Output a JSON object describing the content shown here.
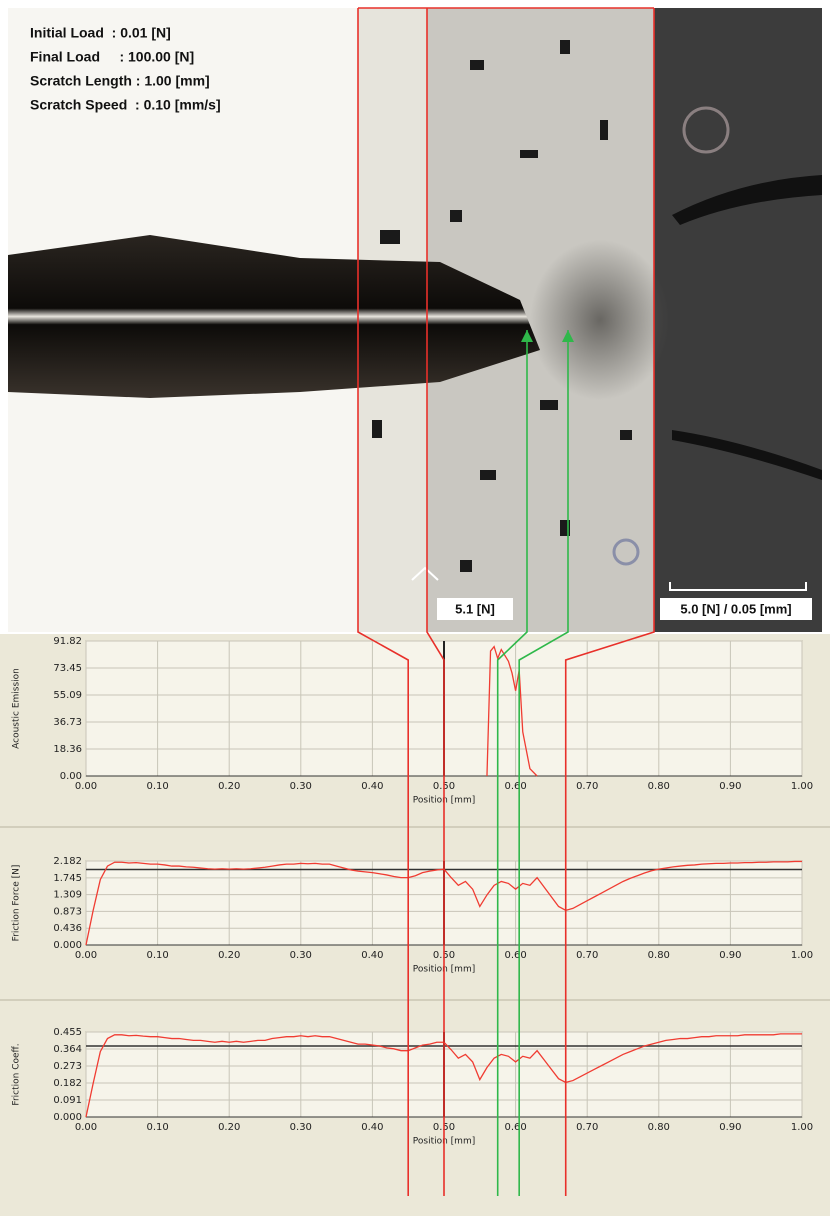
{
  "micrograph": {
    "labels": [
      "Initial Load  : 0.01 [N]",
      "Final Load     : 100.00 [N]",
      "Scratch Length : 1.00 [mm]",
      "Scratch Speed  : 0.10 [mm/s]"
    ],
    "critical_load": "5.1 [N]",
    "scale_bar": "5.0 [N] / 0.05 [mm]"
  },
  "event_markers": [
    {
      "position": 0.45,
      "color": "#e8302a"
    },
    {
      "position": 0.5,
      "color": "#e8302a"
    },
    {
      "position": 0.575,
      "color": "#2fb84a"
    },
    {
      "position": 0.605,
      "color": "#2fb84a"
    },
    {
      "position": 0.67,
      "color": "#e8302a"
    }
  ],
  "chart_data": [
    {
      "type": "line",
      "y_label": "Acoustic Emission",
      "x_label": "Position [mm]",
      "x": [
        0.56,
        0.565,
        0.57,
        0.575,
        0.58,
        0.585,
        0.59,
        0.595,
        0.6,
        0.605,
        0.61,
        0.62,
        0.63
      ],
      "series": [
        {
          "color": "#f03c32",
          "values": [
            0,
            85,
            88,
            80,
            86,
            82,
            78,
            70,
            58,
            72,
            30,
            5,
            0
          ]
        }
      ],
      "vline": {
        "value": 0.5,
        "color": "#222222"
      },
      "xlim": [
        0,
        1
      ],
      "xticks": [
        {
          "value": 0,
          "label": "0.00"
        },
        {
          "value": 0.1,
          "label": "0.10"
        },
        {
          "value": 0.2,
          "label": "0.20"
        },
        {
          "value": 0.3,
          "label": "0.30"
        },
        {
          "value": 0.4,
          "label": "0.40"
        },
        {
          "value": 0.5,
          "label": "0.50"
        },
        {
          "value": 0.6,
          "label": "0.60"
        },
        {
          "value": 0.7,
          "label": "0.70"
        },
        {
          "value": 0.8,
          "label": "0.80"
        },
        {
          "value": 0.9,
          "label": "0.90"
        },
        {
          "value": 1,
          "label": "1.00"
        }
      ],
      "ylim": [
        0,
        91.82
      ],
      "yticks": [
        {
          "value": 0,
          "label": "0.00"
        },
        18.36,
        36.73,
        55.09,
        73.45,
        91.82
      ],
      "grid": true
    },
    {
      "type": "line",
      "y_label": "Friction Force [N]",
      "x_label": "Position [mm]",
      "x": [
        0,
        0.01,
        0.02,
        0.03,
        0.04,
        0.05,
        0.06,
        0.07,
        0.08,
        0.09,
        0.1,
        0.11,
        0.12,
        0.13,
        0.14,
        0.15,
        0.16,
        0.17,
        0.18,
        0.19,
        0.2,
        0.21,
        0.22,
        0.23,
        0.24,
        0.25,
        0.26,
        0.27,
        0.28,
        0.29,
        0.3,
        0.31,
        0.32,
        0.33,
        0.34,
        0.35,
        0.36,
        0.37,
        0.38,
        0.39,
        0.4,
        0.41,
        0.42,
        0.43,
        0.44,
        0.45,
        0.46,
        0.47,
        0.48,
        0.49,
        0.5,
        0.51,
        0.52,
        0.53,
        0.54,
        0.55,
        0.56,
        0.57,
        0.58,
        0.59,
        0.6,
        0.61,
        0.62,
        0.63,
        0.64,
        0.65,
        0.66,
        0.67,
        0.68,
        0.69,
        0.7,
        0.71,
        0.72,
        0.73,
        0.74,
        0.75,
        0.76,
        0.77,
        0.78,
        0.79,
        0.8,
        0.81,
        0.82,
        0.83,
        0.84,
        0.85,
        0.86,
        0.87,
        0.88,
        0.89,
        0.9,
        0.91,
        0.92,
        0.93,
        0.94,
        0.95,
        0.96,
        0.97,
        0.98,
        0.99,
        1
      ],
      "series": [
        {
          "color": "#f03c32",
          "values": [
            0,
            0.9,
            1.7,
            2.05,
            2.15,
            2.15,
            2.13,
            2.14,
            2.12,
            2.1,
            2.1,
            2.08,
            2.05,
            2.05,
            2.03,
            2.02,
            2.0,
            1.98,
            1.97,
            1.98,
            1.97,
            1.98,
            1.97,
            1.98,
            2.0,
            2.02,
            2.05,
            2.08,
            2.1,
            2.1,
            2.12,
            2.11,
            2.12,
            2.1,
            2.1,
            2.05,
            2.0,
            1.95,
            1.92,
            1.9,
            1.88,
            1.85,
            1.82,
            1.78,
            1.75,
            1.75,
            1.8,
            1.88,
            1.92,
            1.95,
            1.97,
            1.75,
            1.55,
            1.65,
            1.45,
            1.0,
            1.3,
            1.55,
            1.65,
            1.6,
            1.45,
            1.6,
            1.55,
            1.75,
            1.5,
            1.25,
            1.0,
            0.9,
            0.95,
            1.05,
            1.15,
            1.25,
            1.35,
            1.45,
            1.55,
            1.65,
            1.73,
            1.8,
            1.87,
            1.93,
            1.97,
            2.0,
            2.03,
            2.05,
            2.07,
            2.08,
            2.1,
            2.11,
            2.12,
            2.12,
            2.13,
            2.13,
            2.14,
            2.14,
            2.15,
            2.15,
            2.16,
            2.16,
            2.16,
            2.17,
            2.17
          ]
        }
      ],
      "reference_line": {
        "value": 1.96,
        "color": "#333333"
      },
      "vline": {
        "value": 0.5,
        "color": "#222222"
      },
      "xlim": [
        0,
        1
      ],
      "xticks": [
        {
          "value": 0,
          "label": "0.00"
        },
        {
          "value": 0.1,
          "label": "0.10"
        },
        {
          "value": 0.2,
          "label": "0.20"
        },
        {
          "value": 0.3,
          "label": "0.30"
        },
        {
          "value": 0.4,
          "label": "0.40"
        },
        {
          "value": 0.5,
          "label": "0.50"
        },
        {
          "value": 0.6,
          "label": "0.60"
        },
        {
          "value": 0.7,
          "label": "0.70"
        },
        {
          "value": 0.8,
          "label": "0.80"
        },
        {
          "value": 0.9,
          "label": "0.90"
        },
        {
          "value": 1,
          "label": "1.00"
        }
      ],
      "ylim": [
        0,
        2.182
      ],
      "yticks": [
        {
          "value": 0,
          "label": "0.000"
        },
        0.436,
        0.873,
        1.309,
        1.745,
        2.182
      ],
      "grid": true
    },
    {
      "type": "line",
      "y_label": "Friction Coeff.",
      "x_label": "Position [mm]",
      "x": [
        0,
        0.01,
        0.02,
        0.03,
        0.04,
        0.05,
        0.06,
        0.07,
        0.08,
        0.09,
        0.1,
        0.11,
        0.12,
        0.13,
        0.14,
        0.15,
        0.16,
        0.17,
        0.18,
        0.19,
        0.2,
        0.21,
        0.22,
        0.23,
        0.24,
        0.25,
        0.26,
        0.27,
        0.28,
        0.29,
        0.3,
        0.31,
        0.32,
        0.33,
        0.34,
        0.35,
        0.36,
        0.37,
        0.38,
        0.39,
        0.4,
        0.41,
        0.42,
        0.43,
        0.44,
        0.45,
        0.46,
        0.47,
        0.48,
        0.49,
        0.5,
        0.51,
        0.52,
        0.53,
        0.54,
        0.55,
        0.56,
        0.57,
        0.58,
        0.59,
        0.6,
        0.61,
        0.62,
        0.63,
        0.64,
        0.65,
        0.66,
        0.67,
        0.68,
        0.69,
        0.7,
        0.71,
        0.72,
        0.73,
        0.74,
        0.75,
        0.76,
        0.77,
        0.78,
        0.79,
        0.8,
        0.81,
        0.82,
        0.83,
        0.84,
        0.85,
        0.86,
        0.87,
        0.88,
        0.89,
        0.9,
        0.91,
        0.92,
        0.93,
        0.94,
        0.95,
        0.96,
        0.97,
        0.98,
        0.99,
        1
      ],
      "series": [
        {
          "color": "#f03c32",
          "values": [
            0,
            0.18,
            0.35,
            0.42,
            0.44,
            0.44,
            0.435,
            0.437,
            0.433,
            0.43,
            0.43,
            0.425,
            0.42,
            0.42,
            0.415,
            0.41,
            0.41,
            0.405,
            0.4,
            0.405,
            0.4,
            0.405,
            0.4,
            0.405,
            0.41,
            0.41,
            0.42,
            0.425,
            0.43,
            0.43,
            0.435,
            0.43,
            0.435,
            0.43,
            0.43,
            0.42,
            0.41,
            0.4,
            0.39,
            0.39,
            0.385,
            0.38,
            0.37,
            0.365,
            0.355,
            0.355,
            0.37,
            0.385,
            0.39,
            0.4,
            0.4,
            0.36,
            0.315,
            0.335,
            0.295,
            0.2,
            0.265,
            0.315,
            0.335,
            0.325,
            0.295,
            0.325,
            0.315,
            0.355,
            0.305,
            0.255,
            0.205,
            0.185,
            0.195,
            0.215,
            0.235,
            0.255,
            0.275,
            0.295,
            0.315,
            0.335,
            0.35,
            0.365,
            0.38,
            0.39,
            0.4,
            0.41,
            0.415,
            0.42,
            0.42,
            0.425,
            0.43,
            0.43,
            0.435,
            0.435,
            0.435,
            0.435,
            0.44,
            0.44,
            0.44,
            0.44,
            0.44,
            0.445,
            0.445,
            0.445,
            0.445
          ]
        }
      ],
      "reference_line": {
        "value": 0.38,
        "color": "#333333"
      },
      "vline": {
        "value": 0.5,
        "color": "#222222"
      },
      "xlim": [
        0,
        1
      ],
      "xticks": [
        {
          "value": 0,
          "label": "0.00"
        },
        {
          "value": 0.1,
          "label": "0.10"
        },
        {
          "value": 0.2,
          "label": "0.20"
        },
        {
          "value": 0.3,
          "label": "0.30"
        },
        {
          "value": 0.4,
          "label": "0.40"
        },
        {
          "value": 0.5,
          "label": "0.50"
        },
        {
          "value": 0.6,
          "label": "0.60"
        },
        {
          "value": 0.7,
          "label": "0.70"
        },
        {
          "value": 0.8,
          "label": "0.80"
        },
        {
          "value": 0.9,
          "label": "0.90"
        },
        {
          "value": 1,
          "label": "1.00"
        }
      ],
      "ylim": [
        0,
        0.455
      ],
      "yticks": [
        {
          "value": 0,
          "label": "0.000"
        },
        0.091,
        0.182,
        0.273,
        0.364,
        0.455
      ],
      "grid": true
    }
  ]
}
